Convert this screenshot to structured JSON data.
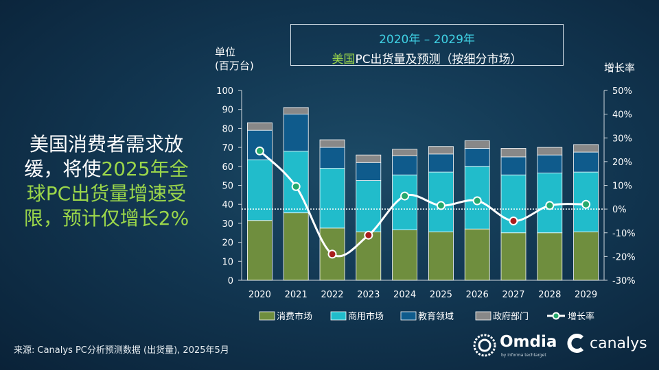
{
  "title": {
    "line1": "2020年 – 2029年",
    "line2_highlight": "美国",
    "line2_rest": "PC出货量及预测（按细分市场）"
  },
  "unit_label": {
    "line1": "单位",
    "line2": "(百万台)"
  },
  "rate_axis_label": "增长率",
  "headline": {
    "part1": "美国消费者需求放缓，将使",
    "highlight": "2025年全球PC出货量增速受限，预计仅增长2%"
  },
  "source": "来源: Canalys PC分析预测数据 (出货量), 2025年5月",
  "logos": {
    "omdia": "Omdia",
    "omdia_sub": "by informa techtarget",
    "canalys": "canalys"
  },
  "colors": {
    "consumer": "#6f8e3e",
    "commercial": "#21bccb",
    "education": "#0f5b8c",
    "government": "#888888",
    "growth_line": "#ffffff",
    "marker_pos": "#26a96c",
    "marker_neg": "#a81d1d"
  },
  "chart_data": {
    "type": "bar",
    "stacked": true,
    "categories": [
      "2020",
      "2021",
      "2022",
      "2023",
      "2024",
      "2025",
      "2026",
      "2027",
      "2028",
      "2029"
    ],
    "series": [
      {
        "name": "消费市场",
        "values": [
          31.5,
          35.5,
          27.5,
          25.5,
          26.5,
          25.5,
          27,
          25,
          25,
          25.5
        ]
      },
      {
        "name": "商用市场",
        "values": [
          32,
          32.5,
          31.5,
          27,
          29,
          31.5,
          33,
          30.5,
          31.5,
          31.5
        ]
      },
      {
        "name": "教育领域",
        "values": [
          15.5,
          19.5,
          11,
          9.5,
          10,
          9.5,
          9.5,
          9.5,
          9.5,
          10.5
        ]
      },
      {
        "name": "政府部门",
        "values": [
          4,
          3.5,
          4,
          4,
          3.5,
          4,
          4,
          4.5,
          4,
          4
        ]
      }
    ],
    "growth": {
      "name": "增长率",
      "values": [
        24.5,
        9.5,
        -19,
        -11,
        5.5,
        1.5,
        3.5,
        -5,
        1.5,
        2
      ]
    },
    "yaxis": {
      "ticks": [
        "0",
        "10",
        "20",
        "30",
        "40",
        "50",
        "60",
        "70",
        "80",
        "90",
        "100"
      ],
      "min": 0,
      "max": 100
    },
    "y2axis": {
      "ticks": [
        "-30%",
        "-20%",
        "-10%",
        "0%",
        "10%",
        "20%",
        "30%",
        "40%",
        "50%"
      ],
      "min": -30,
      "max": 50
    },
    "legend": [
      "消费市场",
      "商用市场",
      "教育领域",
      "政府部门",
      "增长率"
    ],
    "legend_position": "bottom"
  }
}
